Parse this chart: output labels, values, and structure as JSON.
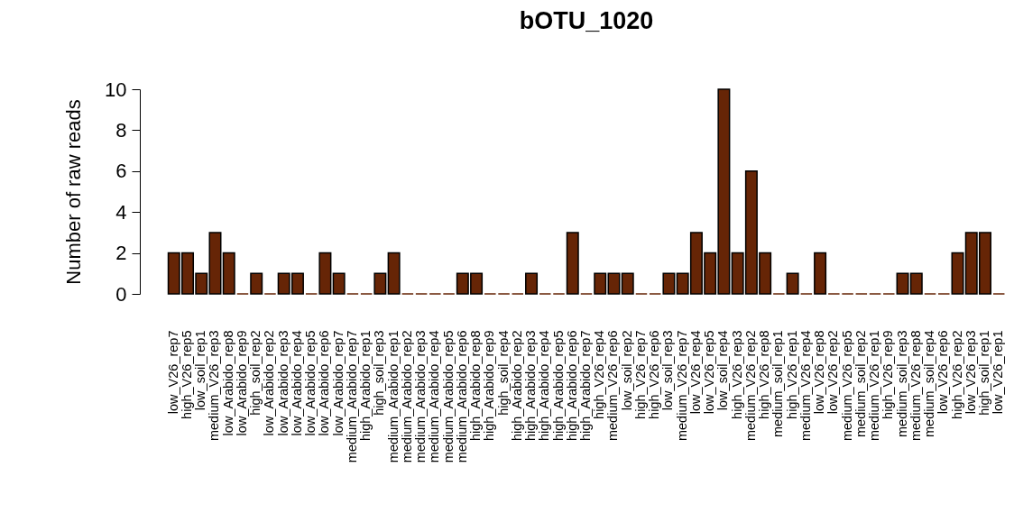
{
  "chart_data": {
    "type": "bar",
    "title": "bOTU_1020",
    "ylabel": "Number of raw reads",
    "categories": [
      "low_V26_rep7",
      "high_V26_rep5",
      "low_soil_rep1",
      "medium_V26_rep3",
      "low_Arabido_rep8",
      "low_Arabido_rep9",
      "high_soil_rep2",
      "low_Arabido_rep2",
      "low_Arabido_rep3",
      "low_Arabido_rep4",
      "low_Arabido_rep5",
      "low_Arabido_rep6",
      "low_Arabido_rep7",
      "medium_Arabido_rep7",
      "high_Arabido_rep1",
      "high_soil_rep3",
      "medium_Arabido_rep1",
      "medium_Arabido_rep2",
      "medium_Arabido_rep3",
      "medium_Arabido_rep4",
      "medium_Arabido_rep5",
      "medium_Arabido_rep6",
      "high_Arabido_rep8",
      "high_Arabido_rep9",
      "high_soil_rep4",
      "high_Arabido_rep2",
      "high_Arabido_rep3",
      "high_Arabido_rep4",
      "high_Arabido_rep5",
      "high_Arabido_rep6",
      "high_Arabido_rep7",
      "high_V26_rep4",
      "medium_V26_rep6",
      "low_soil_rep2",
      "high_V26_rep7",
      "high_V26_rep6",
      "low_soil_rep3",
      "medium_V26_rep7",
      "low_V26_rep4",
      "low_V26_rep5",
      "low_soil_rep4",
      "high_V26_rep3",
      "medium_V26_rep2",
      "high_V26_rep8",
      "medium_soil_rep1",
      "high_V26_rep1",
      "medium_V26_rep4",
      "low_V26_rep8",
      "low_V26_rep2",
      "medium_V26_rep5",
      "medium_soil_rep2",
      "medium_V26_rep1",
      "high_V26_rep9",
      "medium_soil_rep3",
      "medium_V26_rep8",
      "medium_soil_rep4",
      "low_V26_rep6",
      "high_V26_rep2",
      "low_V26_rep3",
      "high_soil_rep1",
      "low_V26_rep1"
    ],
    "values": [
      2,
      2,
      1,
      3,
      2,
      0,
      1,
      0,
      1,
      1,
      0,
      2,
      1,
      0,
      0,
      1,
      2,
      0,
      0,
      0,
      0,
      1,
      1,
      0,
      0,
      0,
      1,
      0,
      0,
      3,
      0,
      1,
      1,
      1,
      0,
      0,
      1,
      1,
      3,
      2,
      10,
      2,
      6,
      2,
      0,
      1,
      0,
      2,
      0,
      0,
      0,
      0,
      0,
      1,
      1,
      0,
      0,
      2,
      3,
      3,
      0
    ],
    "color": "#662506",
    "ylim": [
      0,
      10
    ],
    "yticks": [
      0,
      2,
      4,
      6,
      8,
      10
    ]
  }
}
